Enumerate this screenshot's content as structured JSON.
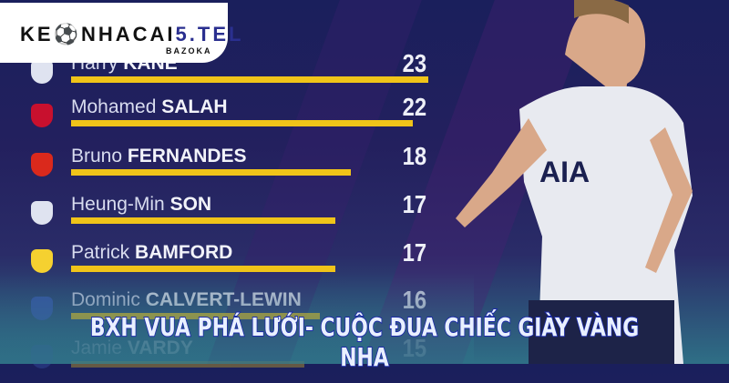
{
  "logo": {
    "main_prefix": "KE",
    "main_mid": "NHACAI",
    "main_suffix": "5.TEL",
    "sub": "BAZOKA"
  },
  "headline": "BXH VUA PHÁ LƯỚI- CUỘC ĐUA CHIẾC GIÀY VÀNG NHA",
  "colors": {
    "bar": "#f0c419",
    "background": "#1a1f5c",
    "headline_stroke": "#1b2aa8"
  },
  "chart_data": {
    "type": "bar",
    "orientation": "horizontal",
    "categories": [
      "Harry KANE",
      "Mohamed SALAH",
      "Bruno FERNANDES",
      "Heung-Min SON",
      "Patrick BAMFORD",
      "Dominic CALVERT-LEWIN",
      "Jamie VARDY"
    ],
    "values": [
      23,
      22,
      18,
      17,
      17,
      16,
      15
    ],
    "rows": [
      {
        "first": "Harry",
        "last": "KANE",
        "goals": "23",
        "club": "tottenham-crest-icon",
        "crest": "#dfe3f0"
      },
      {
        "first": "Mohamed",
        "last": "SALAH",
        "goals": "22",
        "club": "liverpool-crest-icon",
        "crest": "#c8102e"
      },
      {
        "first": "Bruno",
        "last": "FERNANDES",
        "goals": "18",
        "club": "man-united-crest-icon",
        "crest": "#da291c"
      },
      {
        "first": "Heung-Min",
        "last": "SON",
        "goals": "17",
        "club": "tottenham-crest-icon",
        "crest": "#dfe3f0"
      },
      {
        "first": "Patrick",
        "last": "BAMFORD",
        "goals": "17",
        "club": "leeds-crest-icon",
        "crest": "#f5d130"
      },
      {
        "first": "Dominic",
        "last": "CALVERT-LEWIN",
        "goals": "16",
        "club": "everton-crest-icon",
        "crest": "#3a59b0"
      },
      {
        "first": "Jamie",
        "last": "VARDY",
        "goals": "15",
        "club": "leicester-crest-icon",
        "crest": "#3a59b0"
      }
    ]
  }
}
